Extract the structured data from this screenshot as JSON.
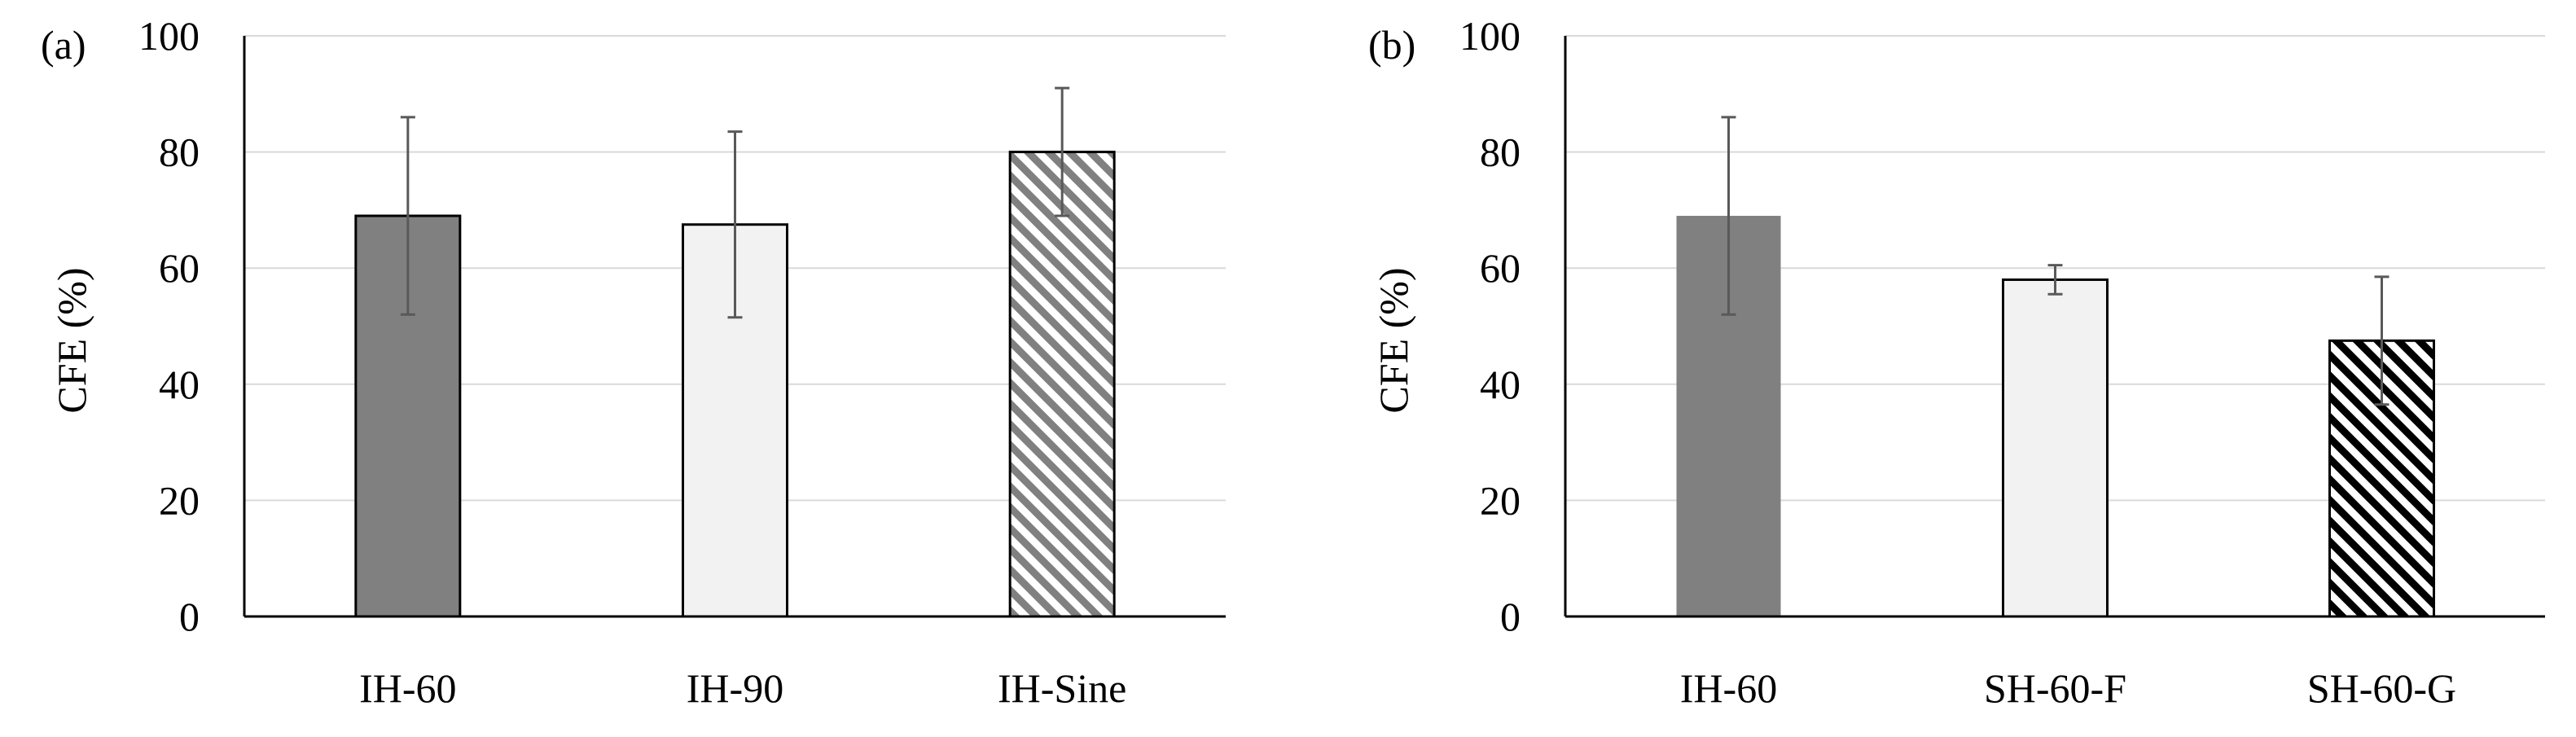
{
  "chart_data": [
    {
      "type": "bar",
      "panel_label": "(a)",
      "ylabel": "CFE (%)",
      "xlabel": "",
      "ylim": [
        0,
        100
      ],
      "yticks": [
        0,
        20,
        40,
        60,
        80,
        100
      ],
      "grid": true,
      "categories": [
        "IH-60",
        "IH-90",
        "IH-Sine"
      ],
      "values": [
        69,
        67.5,
        80
      ],
      "errors": [
        17,
        16,
        11
      ],
      "fills": [
        "solid-dark-gray",
        "solid-light-gray",
        "diagonal-hatch-gray"
      ],
      "colors": [
        "#808080",
        "#f2f2f2",
        "#808080"
      ]
    },
    {
      "type": "bar",
      "panel_label": "(b)",
      "ylabel": "CFE (%)",
      "xlabel": "",
      "ylim": [
        0,
        100
      ],
      "yticks": [
        0,
        20,
        40,
        60,
        80,
        100
      ],
      "grid": true,
      "categories": [
        "IH-60",
        "SH-60-F",
        "SH-60-G"
      ],
      "values": [
        69,
        58,
        47.5
      ],
      "errors": [
        17,
        2.5,
        11
      ],
      "fills": [
        "solid-dark-gray-no-border",
        "solid-light-gray",
        "diagonal-hatch-black"
      ],
      "colors": [
        "#808080",
        "#f2f2f2",
        "#000000"
      ]
    }
  ]
}
